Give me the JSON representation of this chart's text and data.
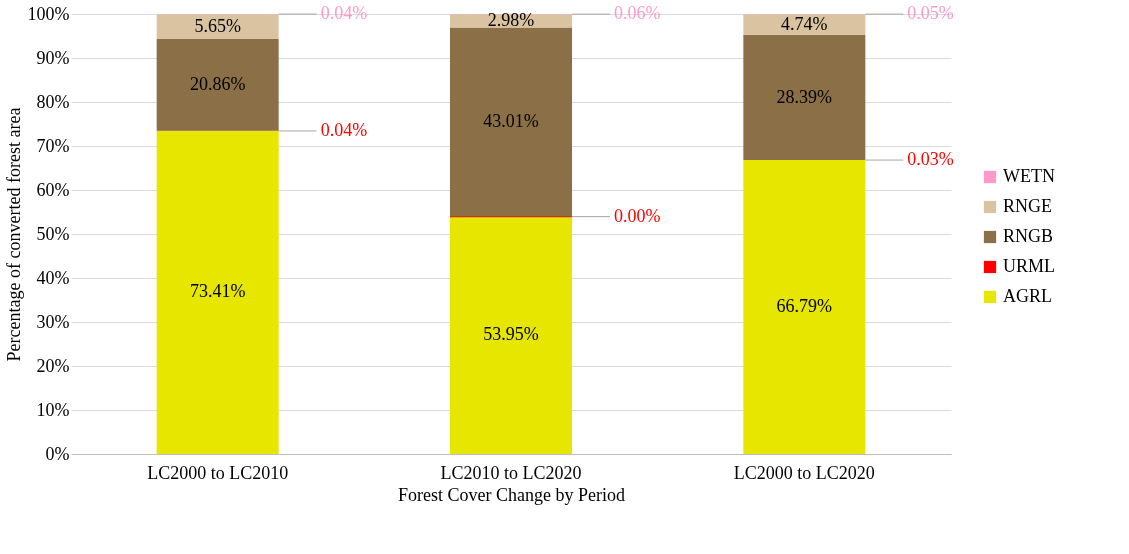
{
  "chart_data": {
    "type": "bar",
    "stacked": true,
    "xlabel": "Forest Cover Change by Period",
    "ylabel": "Percentage of converted forest area",
    "categories": [
      "LC2000 to LC2010",
      "LC2010 to LC2020",
      "LC2000 to LC2020"
    ],
    "series": [
      {
        "name": "AGRL",
        "color": "#e6e600",
        "values": [
          73.41,
          53.95,
          66.79
        ],
        "value_labels": [
          "73.41%",
          "53.95%",
          "66.79%"
        ]
      },
      {
        "name": "URML",
        "color": "#ff0000",
        "values": [
          0.04,
          0.0,
          0.03
        ],
        "value_labels": [
          "0.04%",
          "0.00%",
          "0.03%"
        ]
      },
      {
        "name": "RNGB",
        "color": "#8b6f47",
        "values": [
          20.86,
          43.01,
          28.39
        ],
        "value_labels": [
          "20.86%",
          "43.01%",
          "28.39%"
        ]
      },
      {
        "name": "RNGE",
        "color": "#d9c3a0",
        "values": [
          5.65,
          2.98,
          4.74
        ],
        "value_labels": [
          "5.65%",
          "2.98%",
          "4.74%"
        ]
      },
      {
        "name": "WETN",
        "color": "#ff99cc",
        "values": [
          0.04,
          0.06,
          0.05
        ],
        "value_labels": [
          "0.04%",
          "0.06%",
          "0.05%"
        ]
      }
    ],
    "ylim": [
      0,
      100
    ],
    "yticks": [
      {
        "value": 0,
        "label": "0%"
      },
      {
        "value": 10,
        "label": "10%"
      },
      {
        "value": 20,
        "label": "20%"
      },
      {
        "value": 30,
        "label": "30%"
      },
      {
        "value": 40,
        "label": "40%"
      },
      {
        "value": 50,
        "label": "50%"
      },
      {
        "value": 60,
        "label": "60%"
      },
      {
        "value": 70,
        "label": "70%"
      },
      {
        "value": 80,
        "label": "80%"
      },
      {
        "value": 90,
        "label": "90%"
      },
      {
        "value": 100,
        "label": "100%"
      }
    ],
    "grid": "y",
    "legend": "right"
  }
}
